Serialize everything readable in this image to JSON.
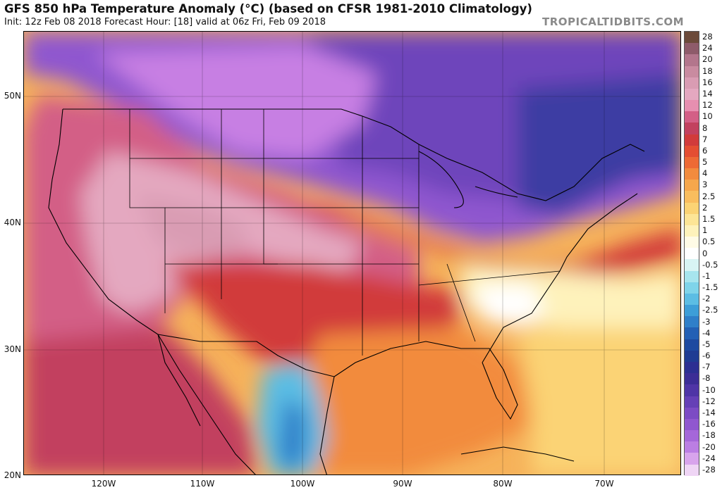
{
  "header": {
    "title": "GFS 850 hPa Temperature Anomaly (°C) (based on CFSR 1981-2010 Climatology)",
    "subtitle": "Init: 12z Feb 08 2018   Forecast Hour: [18]   valid at 06z Fri, Feb 09 2018",
    "watermark": "TROPICALTIDBITS.COM"
  },
  "map": {
    "lat_labels": [
      "50N",
      "40N",
      "30N",
      "20N"
    ],
    "lon_labels": [
      "120W",
      "110W",
      "100W",
      "90W",
      "80W",
      "70W"
    ]
  },
  "colorbar": {
    "levels": [
      "28",
      "24",
      "20",
      "18",
      "16",
      "14",
      "12",
      "10",
      "8",
      "7",
      "6",
      "5",
      "4",
      "3",
      "2.5",
      "2",
      "1.5",
      "1",
      "0.5",
      "0",
      "-0.5",
      "-1",
      "-1.5",
      "-2",
      "-2.5",
      "-3",
      "-4",
      "-5",
      "-6",
      "-7",
      "-8",
      "-10",
      "-12",
      "-14",
      "-16",
      "-18",
      "-20",
      "-24",
      "-28"
    ],
    "colors": [
      "#6b4a3a",
      "#8e5b6a",
      "#b3768c",
      "#c98ba0",
      "#d99cb3",
      "#e4a8c0",
      "#e78fb0",
      "#d35f86",
      "#c2415f",
      "#d13b3b",
      "#e44e32",
      "#ed6a35",
      "#f28b3e",
      "#f6a74c",
      "#f9bd5e",
      "#fbd374",
      "#fde596",
      "#fef2bb",
      "#fffbe6",
      "#ffffff",
      "#d8f4f4",
      "#a7e5ee",
      "#7fd4ea",
      "#5cbde4",
      "#3d9ed8",
      "#2f7fc9",
      "#2360b5",
      "#1d4aa0",
      "#1f3c93",
      "#2c2f92",
      "#3c2d96",
      "#4f35a6",
      "#6540b6",
      "#7c4bc4",
      "#9057cf",
      "#a567d9",
      "#bb7ee3",
      "#d8a4ec",
      "#efd5f5"
    ]
  }
}
